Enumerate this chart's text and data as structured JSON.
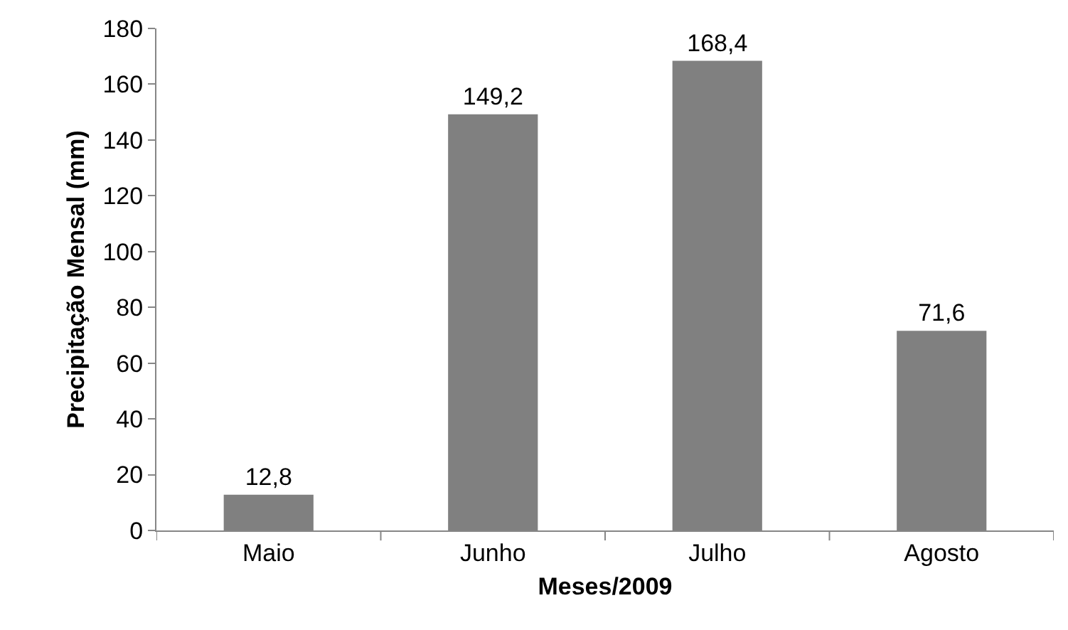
{
  "chart_data": {
    "type": "bar",
    "xlabel": "Meses/2009",
    "ylabel": "Precipitação Mensal (mm)",
    "categories": [
      "Maio",
      "Junho",
      "Julho",
      "Agosto"
    ],
    "values": [
      12.8,
      149.2,
      168.4,
      71.6
    ],
    "color": "#808080",
    "value_labels": [
      "12,8",
      "149,2",
      "168,4",
      "71,6"
    ],
    "ylim": [
      0,
      180
    ],
    "yticks": [
      0,
      20,
      40,
      60,
      80,
      100,
      120,
      140,
      160,
      180
    ],
    "legend": false
  }
}
